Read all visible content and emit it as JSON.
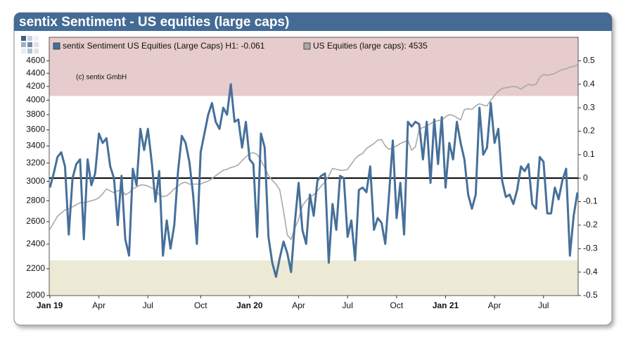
{
  "chart_data": {
    "type": "line",
    "title": "sentix Sentiment - US equities (large caps)",
    "annotation": "(c) sentix GmbH",
    "categories": [
      "Jan 19",
      null,
      null,
      null,
      null,
      null,
      null,
      null,
      null,
      null,
      null,
      null,
      null,
      "Apr",
      null,
      null,
      null,
      null,
      null,
      null,
      null,
      null,
      null,
      null,
      null,
      null,
      "Jul",
      null,
      null,
      null,
      null,
      null,
      null,
      null,
      null,
      null,
      null,
      null,
      null,
      null,
      "Oct",
      null,
      null,
      null,
      null,
      null,
      null,
      null,
      null,
      null,
      null,
      null,
      null,
      "Jan 20",
      null,
      null,
      null,
      null,
      null,
      null,
      null,
      null,
      null,
      null,
      null,
      null,
      "Apr",
      null,
      null,
      null,
      null,
      null,
      null,
      null,
      null,
      null,
      null,
      null,
      null,
      "Jul",
      null,
      null,
      null,
      null,
      null,
      null,
      null,
      null,
      null,
      null,
      null,
      null,
      "Oct",
      null,
      null,
      null,
      null,
      null,
      null,
      null,
      null,
      null,
      null,
      null,
      null,
      "Jan 21",
      null,
      null,
      null,
      null,
      null,
      null,
      null,
      null,
      null,
      null,
      null,
      null,
      "Apr",
      null,
      null,
      null,
      null,
      null,
      null,
      null,
      null,
      null,
      null,
      null,
      null,
      "Jul",
      null,
      null,
      null,
      null,
      null,
      null,
      null,
      null,
      null
    ],
    "series": [
      {
        "name": "sentix Sentiment US Equities (Large Caps) H1: -0.061",
        "color": "#46709a",
        "axis": "y2",
        "values": [
          -0.04,
          0.02,
          0.09,
          0.11,
          0.05,
          -0.24,
          0,
          0.06,
          0.08,
          -0.26,
          0.08,
          -0.03,
          0.02,
          0.19,
          0.15,
          0.17,
          0.05,
          0,
          -0.2,
          0.01,
          -0.26,
          -0.33,
          0.04,
          -0.03,
          0.21,
          0.12,
          0.21,
          0.07,
          -0.1,
          0.03,
          -0.33,
          -0.18,
          -0.3,
          -0.2,
          0.03,
          0.18,
          0.15,
          0.07,
          -0.07,
          -0.28,
          0.11,
          0.19,
          0.27,
          0.32,
          0.24,
          0.21,
          0.3,
          0.27,
          0.4,
          0.24,
          0.25,
          0.13,
          0.24,
          0.08,
          0.06,
          -0.25,
          0.19,
          0.13,
          -0.25,
          -0.36,
          -0.42,
          -0.34,
          -0.27,
          -0.32,
          -0.4,
          -0.19,
          -0.02,
          -0.22,
          -0.28,
          -0.07,
          -0.16,
          -0.01,
          0.01,
          0.02,
          -0.36,
          -0.11,
          -0.22,
          0.01,
          0,
          -0.25,
          -0.18,
          -0.35,
          -0.05,
          -0.04,
          -0.06,
          0.05,
          -0.22,
          -0.17,
          -0.19,
          -0.28,
          -0.07,
          0.16,
          -0.17,
          -0.02,
          -0.24,
          0.24,
          0.22,
          0.24,
          0.23,
          0.08,
          0.24,
          -0.02,
          0.25,
          0.06,
          0.26,
          -0.04,
          0.15,
          0.08,
          0.24,
          0.15,
          0.08,
          -0.07,
          -0.13,
          -0.07,
          0.3,
          0.1,
          0.13,
          0.32,
          0.15,
          0.21,
          -0.01,
          -0.08,
          -0.07,
          -0.11,
          -0.05,
          0.05,
          0.03,
          0.06,
          -0.11,
          -0.13,
          0.09,
          0.07,
          -0.15,
          -0.15,
          -0.04,
          -0.09,
          -0.01,
          0.04,
          -0.33,
          -0.16,
          -0.061
        ]
      },
      {
        "name": "US Equities (large caps): 4535",
        "color": "#a9a9a9",
        "axis": "y",
        "values": [
          2530,
          2590,
          2650,
          2680,
          2710,
          2720,
          2740,
          2760,
          2780,
          2780,
          2790,
          2800,
          2810,
          2830,
          2870,
          2920,
          2900,
          2880,
          2900,
          2910,
          2860,
          2880,
          2920,
          2940,
          2960,
          2960,
          2950,
          2930,
          2910,
          2860,
          2840,
          2850,
          2880,
          2920,
          2950,
          2980,
          2990,
          2970,
          2970,
          2970,
          2970,
          2990,
          3000,
          3030,
          3060,
          3090,
          3120,
          3130,
          3150,
          3160,
          3180,
          3230,
          3270,
          3310,
          3320,
          3300,
          3230,
          3150,
          3060,
          3010,
          2970,
          2910,
          2700,
          2480,
          2440,
          2540,
          2620,
          2750,
          2800,
          2840,
          2860,
          2900,
          2950,
          2990,
          3060,
          3140,
          3130,
          3120,
          3120,
          3130,
          3190,
          3250,
          3290,
          3310,
          3370,
          3400,
          3430,
          3470,
          3480,
          3400,
          3360,
          3380,
          3400,
          3430,
          3450,
          3470,
          3350,
          3390,
          3610,
          3630,
          3650,
          3680,
          3710,
          3720,
          3730,
          3770,
          3800,
          3790,
          3760,
          3730,
          3870,
          3880,
          3870,
          3920,
          3950,
          3930,
          3920,
          4000,
          4070,
          4130,
          4170,
          4180,
          4190,
          4200,
          4190,
          4160,
          4200,
          4230,
          4220,
          4230,
          4340,
          4380,
          4370,
          4380,
          4400,
          4430,
          4460,
          4470,
          4500,
          4510,
          4535
        ]
      }
    ],
    "ylim": [
      2000,
      5000
    ],
    "ylog": true,
    "yticks": [
      2000,
      2200,
      2400,
      2600,
      2800,
      3000,
      3200,
      3400,
      3600,
      3800,
      4000,
      4200,
      4400,
      4600
    ],
    "y2lim": [
      -0.5,
      0.6
    ],
    "y2ticks": [
      -0.5,
      -0.4,
      -0.3,
      -0.2,
      -0.1,
      0,
      0.1,
      0.2,
      0.3,
      0.4,
      0.5
    ],
    "baseline": 0,
    "bands": [
      {
        "from": 0.35,
        "to": 0.6,
        "color": "#e6cccc"
      },
      {
        "from": -0.5,
        "to": -0.35,
        "color": "#ecead4"
      }
    ],
    "grid": false,
    "legend": "top"
  }
}
